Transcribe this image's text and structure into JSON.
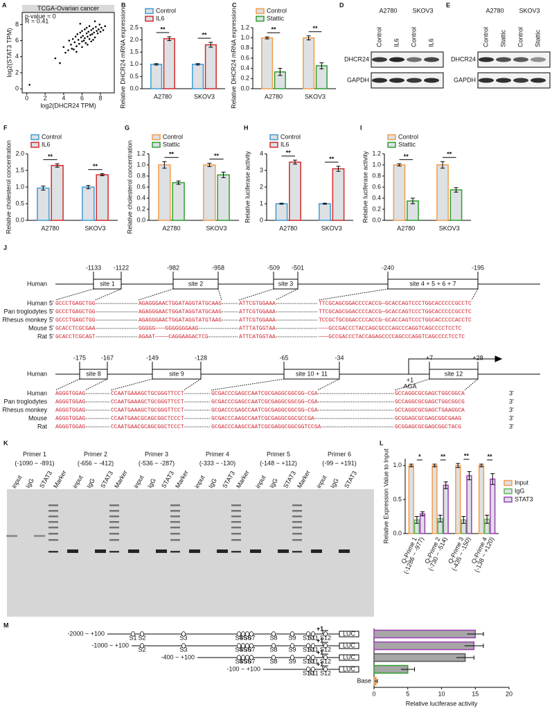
{
  "chart_data": [
    {
      "type": "scatter",
      "panel": "A",
      "title": "TCGA-Ovarian cancer",
      "annotations": [
        "p-value = 0",
        "R = 0.41"
      ],
      "xlabel": "log2(DHCR24 TPM)",
      "ylabel": "log2(STAT3 TPM)",
      "color": "#000000",
      "x": [
        0.3,
        3.1,
        3.6,
        4.0,
        4.2,
        4.5,
        4.6,
        4.8,
        5.0,
        5.1,
        5.2,
        5.3,
        5.4,
        5.5,
        5.6,
        5.7,
        5.8,
        5.9,
        6.0,
        6.0,
        6.1,
        6.2,
        6.3,
        6.3,
        6.4,
        6.5,
        6.5,
        6.6,
        6.7,
        6.8,
        6.8,
        6.9,
        7.0,
        7.0,
        7.1,
        7.2,
        7.3,
        7.4,
        7.5,
        7.6,
        7.7,
        7.8,
        7.9,
        8.0,
        8.1,
        8.3,
        8.5,
        5.4,
        6.0,
        6.6,
        7.2,
        4.9,
        5.8,
        7.4
      ],
      "y": [
        0.5,
        3.8,
        3.2,
        5.2,
        4.5,
        4.8,
        6.0,
        5.5,
        6.2,
        4.9,
        5.8,
        6.5,
        5.3,
        6.8,
        6.1,
        5.6,
        7.0,
        6.4,
        5.9,
        7.2,
        6.6,
        6.0,
        7.4,
        6.3,
        5.7,
        6.9,
        7.6,
        6.5,
        7.1,
        6.2,
        7.8,
        6.7,
        7.3,
        5.9,
        6.8,
        7.5,
        7.0,
        6.4,
        7.7,
        7.2,
        6.9,
        7.4,
        8.0,
        7.1,
        7.6,
        7.3,
        7.8,
        4.6,
        5.2,
        5.5,
        6.1,
        5.0,
        8.1,
        8.4
      ],
      "xlim": [
        -0.5,
        9.5
      ],
      "ylim": [
        -0.5,
        9.5
      ],
      "xticks": [
        0,
        2,
        4,
        6,
        8
      ],
      "yticks": [
        0,
        2,
        4,
        6,
        8
      ]
    },
    {
      "type": "bar",
      "panel": "B",
      "ylabel": "Relative DHCR24 mRNA expression",
      "categories": [
        "A2780",
        "SKOV3"
      ],
      "fill": "#dde1e4",
      "legend": "top-left",
      "series": [
        {
          "name": "Control",
          "color": "#3d9bd6",
          "values": [
            1.0,
            1.0
          ],
          "errors": [
            0.03,
            0.03
          ]
        },
        {
          "name": "IL6",
          "color": "#d62728",
          "values": [
            2.05,
            1.8
          ],
          "errors": [
            0.08,
            0.1
          ]
        }
      ],
      "ylim": [
        0,
        2.5
      ],
      "yticks": [
        {
          "value": 0,
          "label": "0.0"
        },
        {
          "value": 0.5,
          "label": "0.5"
        },
        {
          "value": 1,
          "label": "1.0"
        },
        {
          "value": 1.5,
          "label": "1.5"
        },
        {
          "value": 2,
          "label": "2.0"
        },
        {
          "value": 2.5,
          "label": "2.5"
        }
      ],
      "annotations": [
        "**",
        "**"
      ]
    },
    {
      "type": "bar",
      "panel": "C",
      "ylabel": "Relative DHCR24 mRNA expression",
      "categories": [
        "A2780",
        "SKOV3"
      ],
      "fill": "#dde1e4",
      "legend": "top-left",
      "series": [
        {
          "name": "Control",
          "color": "#f39c4a",
          "values": [
            1.0,
            1.0
          ],
          "errors": [
            0.02,
            0.04
          ]
        },
        {
          "name": "Stattic",
          "color": "#2ca02c",
          "values": [
            0.33,
            0.45
          ],
          "errors": [
            0.07,
            0.06
          ]
        }
      ],
      "ylim": [
        0,
        1.2
      ],
      "yticks": [
        {
          "value": 0,
          "label": "0.0"
        },
        {
          "value": 0.2,
          "label": "0.2"
        },
        {
          "value": 0.4,
          "label": "0.4"
        },
        {
          "value": 0.6,
          "label": "0.6"
        },
        {
          "value": 0.8,
          "label": "0.8"
        },
        {
          "value": 1,
          "label": "1.0"
        },
        {
          "value": 1.2,
          "label": "1.2"
        }
      ],
      "annotations": [
        "**",
        "**"
      ]
    },
    {
      "type": "bar",
      "panel": "F",
      "ylabel": "Relative cholesterol concentration",
      "categories": [
        "A2780",
        "SKOV3"
      ],
      "fill": "#dde1e4",
      "legend": "top-left",
      "series": [
        {
          "name": "Control",
          "color": "#3d9bd6",
          "values": [
            0.97,
            1.0
          ],
          "errors": [
            0.06,
            0.05
          ]
        },
        {
          "name": "IL6",
          "color": "#d62728",
          "values": [
            1.65,
            1.37
          ],
          "errors": [
            0.05,
            0.03
          ]
        }
      ],
      "ylim": [
        0,
        2
      ],
      "yticks": [
        {
          "value": 0,
          "label": "0.0"
        },
        {
          "value": 0.5,
          "label": "0.5"
        },
        {
          "value": 1,
          "label": "1.0"
        },
        {
          "value": 1.5,
          "label": "1.5"
        },
        {
          "value": 2,
          "label": "2.0"
        }
      ],
      "annotations": [
        "**",
        "**"
      ]
    },
    {
      "type": "bar",
      "panel": "G",
      "ylabel": "Relative cholesterol concentration",
      "categories": [
        "A2780",
        "SKOV3"
      ],
      "fill": "#dde1e4",
      "legend": "top-left",
      "series": [
        {
          "name": "Control",
          "color": "#f39c4a",
          "values": [
            1.0,
            1.0
          ],
          "errors": [
            0.06,
            0.03
          ]
        },
        {
          "name": "Stattic",
          "color": "#2ca02c",
          "values": [
            0.68,
            0.82
          ],
          "errors": [
            0.03,
            0.05
          ]
        }
      ],
      "ylim": [
        0,
        1.2
      ],
      "yticks": [
        {
          "value": 0,
          "label": "0.0"
        },
        {
          "value": 0.2,
          "label": "0.2"
        },
        {
          "value": 0.4,
          "label": "0.4"
        },
        {
          "value": 0.6,
          "label": "0.6"
        },
        {
          "value": 0.8,
          "label": "0.8"
        },
        {
          "value": 1,
          "label": "1.0"
        },
        {
          "value": 1.2,
          "label": "1.2"
        }
      ],
      "annotations": [
        "**",
        "**"
      ]
    },
    {
      "type": "bar",
      "panel": "H",
      "ylabel": "Relative luciferase activity",
      "categories": [
        "A2780",
        "SKOV3"
      ],
      "fill": "#dde1e4",
      "legend": "top-left",
      "series": [
        {
          "name": "Control",
          "color": "#3d9bd6",
          "values": [
            1.0,
            1.0
          ],
          "errors": [
            0.03,
            0.03
          ]
        },
        {
          "name": "IL6",
          "color": "#d62728",
          "values": [
            3.5,
            3.1
          ],
          "errors": [
            0.12,
            0.15
          ]
        }
      ],
      "ylim": [
        0,
        4
      ],
      "yticks": [
        0,
        1,
        2,
        3,
        4
      ],
      "annotations": [
        "**",
        "**"
      ]
    },
    {
      "type": "bar",
      "panel": "I",
      "ylabel": "Relative luciferase activity",
      "categories": [
        "A2780",
        "SKOV3"
      ],
      "fill": "#dde1e4",
      "legend": "top-left",
      "series": [
        {
          "name": "Control",
          "color": "#f39c4a",
          "values": [
            1.0,
            1.0
          ],
          "errors": [
            0.02,
            0.06
          ]
        },
        {
          "name": "Stattic",
          "color": "#2ca02c",
          "values": [
            0.35,
            0.55
          ],
          "errors": [
            0.05,
            0.04
          ]
        }
      ],
      "ylim": [
        0,
        1.2
      ],
      "yticks": [
        {
          "value": 0,
          "label": "0.0"
        },
        {
          "value": 0.2,
          "label": "0.2"
        },
        {
          "value": 0.4,
          "label": "0.4"
        },
        {
          "value": 0.6,
          "label": "0.6"
        },
        {
          "value": 0.8,
          "label": "0.8"
        },
        {
          "value": 1,
          "label": "1.0"
        },
        {
          "value": 1.2,
          "label": "1.2"
        }
      ],
      "annotations": [
        "**",
        "**"
      ]
    },
    {
      "type": "bar",
      "panel": "L",
      "ylabel": "Relative Expression Value  to Input",
      "categories": [
        "Q-Prime 1",
        "Q-Prime 2",
        "Q-Prime 3",
        "Q-Prime 4"
      ],
      "category_notes": [
        "(-1286 ~ -977)",
        "(-730 ~ -514)",
        "(-435 ~ -150)",
        "(-138 ~ +120)"
      ],
      "fill": "#dde1e4",
      "legend": "right",
      "series": [
        {
          "name": "Input",
          "color": "#f39c4a",
          "values": [
            1.0,
            1.0,
            1.0,
            1.0
          ],
          "errors": [
            0.02,
            0.02,
            0.03,
            0.02
          ]
        },
        {
          "name": "IgG",
          "color": "#5cb85c",
          "values": [
            0.2,
            0.22,
            0.2,
            0.21
          ],
          "errors": [
            0.05,
            0.05,
            0.05,
            0.06
          ]
        },
        {
          "name": "STAT3",
          "color": "#9b3fb5",
          "values": [
            0.29,
            0.71,
            0.85,
            0.8
          ],
          "errors": [
            0.03,
            0.05,
            0.06,
            0.08
          ]
        }
      ],
      "ylim": [
        0,
        1.1
      ],
      "yticks": [
        {
          "value": 0,
          "label": "0.0"
        },
        {
          "value": 0.5,
          "label": "0.5"
        },
        {
          "value": 1,
          "label": "1.0"
        }
      ],
      "annotations": [
        "*",
        "**",
        "**",
        "**"
      ]
    },
    {
      "type": "hbar",
      "panel": "M",
      "xlabel": "Relative luciferase activity",
      "categories": [
        "-2000 ~ +100",
        "-1000 ~ +100",
        "-400 ~ +100",
        "-100 ~ +100",
        "Base"
      ],
      "values": [
        15,
        14.8,
        13.5,
        5,
        0.3
      ],
      "errors": [
        1.2,
        1.4,
        1.3,
        1.0,
        0.2
      ],
      "fill": "#a6a6a6",
      "colors": [
        "#9b3fb5",
        "#9b3fb5",
        "#555555",
        "#2ca02c",
        "#f39c4a"
      ],
      "xlim": [
        0,
        20
      ],
      "xticks": [
        0,
        5,
        10,
        15,
        20
      ]
    }
  ],
  "blots": [
    {
      "panel": "D",
      "cell_lines": [
        "A2780",
        "SKOV3"
      ],
      "lanes": [
        "Control",
        "IL6",
        "Control",
        "IL6"
      ],
      "proteins": [
        "DHCR24",
        "GAPDH"
      ]
    },
    {
      "panel": "E",
      "cell_lines": [
        "A2780",
        "SKOV3"
      ],
      "lanes": [
        "Control",
        "Stattic",
        "Control",
        "Stattic"
      ],
      "proteins": [
        "DHCR24",
        "GAPDH"
      ]
    }
  ],
  "alignment": {
    "panel": "J",
    "species": [
      "Human",
      "Pan troglodytes",
      "Rhesus monkey",
      "Mouse",
      "Rat"
    ],
    "five_prime": "5'",
    "three_prime": "3'",
    "blocks": [
      {
        "sites": [
          {
            "label": "site 1",
            "start": "-1133",
            "end": "-1122"
          },
          {
            "label": "site 2",
            "start": "-982",
            "end": "-958"
          },
          {
            "label": "site 3",
            "start": "-509",
            "end": "-501"
          },
          {
            "label": "site 4 + 5 + 6 + 7",
            "start": "-240",
            "end": "-195"
          }
        ],
        "rows": [
          [
            "GCCCTGAGCTGG",
            "AGAGGGAACTGGATAGGTATGCAAG",
            "ATTCGTGGAAA",
            "TTCGCAGCGGACCCCACCG—GCACCAGTCCCTGGCACCCCCGCCTC"
          ],
          [
            "GCCCTGAGCTGG",
            "AGAGGGAACTGGATAGGTATGCAAG",
            "ATTCGTGGAAA",
            "TTCGCAGCGGACCCCACCG—GCACCAGTCCCTGGCACCCCCGCCTC"
          ],
          [
            "GCCCTGAGCTGG",
            "AGAGGGAACTGGATAGGTATGTAAG",
            "ATTCGTGGAAA",
            "TCCGCTGCGGACCCCACCG—GCACCAGTCCCTGGCACCCCCACCTC"
          ],
          [
            "GCACCTCGCGAA",
            "GGGGG———GGGGGGGAAG",
            "ATTTATGGTAA",
            "———GCCGACCCTACCAGCGCCCAGCCCAGGTCAGCCCCTCCTC"
          ],
          [
            "GCACCTCGCAGT",
            "AGAAT————CAGGAAGACTCG",
            "ATTCATGGTAA",
            "———GCCGACCCTACCAGAGCCCCAGCCCAGGTCAGCCCCTCCTC"
          ]
        ]
      },
      {
        "sites": [
          {
            "label": "site 8",
            "start": "-175",
            "end": "-167"
          },
          {
            "label": "site 9",
            "start": "-149",
            "end": "-128"
          },
          {
            "label": "site 10 + 11",
            "start": "-65",
            "end": "-34"
          },
          {
            "label": "site 12",
            "start": "+7",
            "end": "+28"
          }
        ],
        "tss": {
          "position": "+1",
          "codon": "AGA"
        },
        "rows": [
          [
            "AGGGTGGAG",
            "CCAATGAAAGCTGCGGGTTCCT",
            "GCGACCCGAGCCAATCGCGAGGCGGCGG—CGA",
            "GCCAGGCGCGAGCTGGCGGCA"
          ],
          [
            "AGGGTGGAG",
            "CCAATGAAAGCTGCGGGTTCCT",
            "GCGACCCGAGCCAATCGCGAGGCGGCGG—CGA",
            "GCCAGGCGCGAGCTGGCGGCG"
          ],
          [
            "AGGGTGGAG",
            "CCAATGAAAGCTGCGGGTTCCT",
            "GCGACCCGAGCCAATCGCGAGGCGGCGG—CGA",
            "GCCAGGCGCGAGCTGAAGGCA"
          ],
          [
            "AGGGTGGAG",
            "CCAATGAACGCAGCGGCTCCCT",
            "GCGACCCAAGCCAATCGCGAGGCGGCGCCGA",
            "GCGGAGCGCGAGCGGCGAAG"
          ],
          [
            "AGGGTGGAG",
            "CCAATGAACGCAGCGGCTCCCT",
            "GCGACCCAAGCCAATCGCGAGGCGGCGGTCCGA",
            "GCGGAGCGCGAGCGGCTACG"
          ]
        ]
      }
    ]
  },
  "gel": {
    "panel": "K",
    "primers": [
      {
        "name": "Primer 1",
        "range": "(-1090 ~ -891)",
        "lanes": [
          "input",
          "IgG",
          "STAT3",
          "Marker"
        ]
      },
      {
        "name": "Primer 2",
        "range": "(-656 ~ -412)",
        "lanes": [
          "input",
          "IgG",
          "STAT3",
          "Marker"
        ]
      },
      {
        "name": "Primer 3",
        "range": "(-536 ~ -287)",
        "lanes": [
          "input",
          "IgG",
          "STAT3",
          "Marker"
        ]
      },
      {
        "name": "Primer 4",
        "range": "(-333 ~ -130)",
        "lanes": [
          "input",
          "IgG",
          "STAT3",
          "Marker"
        ]
      },
      {
        "name": "Primer 5",
        "range": "(-148 ~ +112)",
        "lanes": [
          "input",
          "IgG",
          "STAT3",
          "Marker"
        ]
      },
      {
        "name": "Primer 6",
        "range": "(-99 ~ +191)",
        "lanes": [
          "input",
          "IgG",
          "STAT3"
        ]
      }
    ]
  },
  "promoter_constructs": {
    "tss": "+1",
    "reporter": "LUC",
    "rows": [
      [
        "S1",
        "S2",
        "S3",
        "S4",
        "S5",
        "S6",
        "S7",
        "S8",
        "S9",
        "S10",
        "S11",
        "S12"
      ],
      [
        "S2",
        "S3",
        "S4",
        "S5",
        "S6",
        "S7",
        "S8",
        "S9",
        "S10",
        "S11",
        "S12"
      ],
      [
        "S4",
        "S5",
        "S6",
        "S7",
        "S8",
        "S9",
        "S10",
        "S11",
        "S12"
      ],
      [
        "S10",
        "S11",
        "S12"
      ]
    ]
  }
}
